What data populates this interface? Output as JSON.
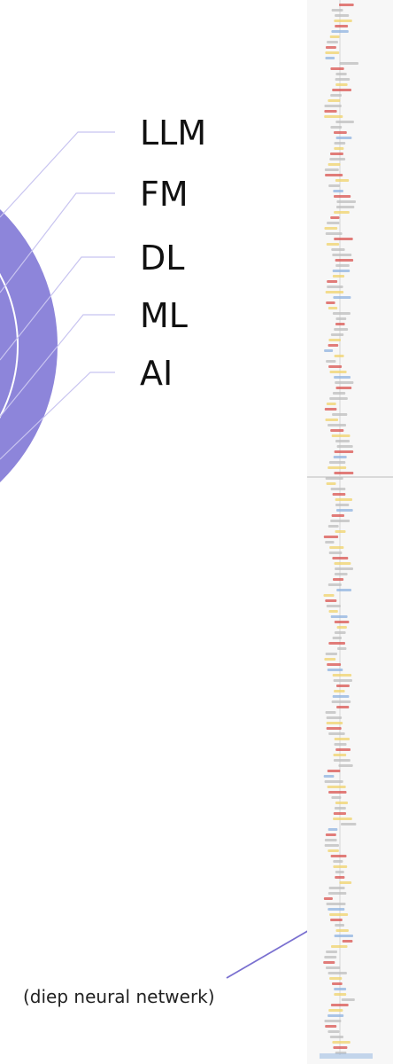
{
  "diagram": {
    "layers": [
      "LLM",
      "FM",
      "DL",
      "ML",
      "AI"
    ],
    "caption": "(diep neural netwerk)",
    "colors": {
      "outer_fill": "#8D85DA",
      "ring_stroke": "#ffffff",
      "leader_line": "#C8C4F0",
      "arrow": "#7A70D0",
      "strip_bg": "#f7f7f7",
      "node_red": "#d9534f",
      "node_yellow": "#f0d36b",
      "node_blue": "#8fb3e0",
      "node_gray": "#bdbdbd"
    }
  }
}
